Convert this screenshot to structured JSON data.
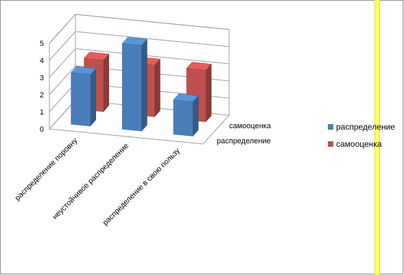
{
  "colors": {
    "series1": "#4a7ebb",
    "series2": "#c0504d",
    "highlight": "#ffff66",
    "highlight_edge": "#e8d840"
  },
  "chart_data": {
    "type": "bar",
    "variant": "3d-clustered-rows",
    "categories": [
      "распределение поровну",
      "неустойчивое распределение",
      "распределение в свою пользу"
    ],
    "series": [
      {
        "name": "распределение",
        "values": [
          3,
          5,
          2
        ]
      },
      {
        "name": "самооценка",
        "values": [
          3,
          3,
          3
        ]
      }
    ],
    "ylim": [
      0,
      5
    ],
    "yticks": [
      "0",
      "1",
      "2",
      "3",
      "4",
      "5"
    ],
    "depth_labels": [
      "самооценка",
      "распределение"
    ],
    "legend_position": "right",
    "grid": true
  }
}
